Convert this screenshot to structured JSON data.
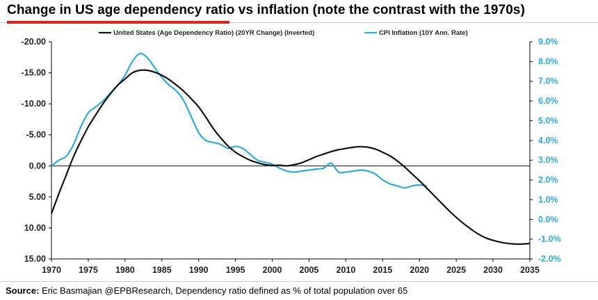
{
  "header": {
    "title": "Change in US age dependency ratio vs inflation (note the contrast with the 1970s)"
  },
  "footer": {
    "source_label": "Source:",
    "source_text": " Eric Basmajian @EPBResearch, Dependency ratio defined as % of total population over 65"
  },
  "colors": {
    "series1": "#111111",
    "series2": "#29abe2",
    "accent": "#e2231a"
  },
  "chart_data": {
    "type": "line",
    "x_ticks": [
      "1970",
      "1975",
      "1980",
      "1985",
      "1990",
      "1995",
      "2000",
      "2005",
      "2010",
      "2015",
      "2020",
      "2025",
      "2030",
      "2035"
    ],
    "xlim": [
      1970,
      2035
    ],
    "y_left": {
      "ylim": [
        -20,
        15
      ],
      "inverted": true,
      "ticks": [
        -20,
        -15,
        -10,
        -5,
        0,
        5,
        10,
        15
      ],
      "tick_labels": [
        "-20.00",
        "-15.00",
        "-10.00",
        "-5.00",
        "0.00",
        "5.00",
        "10.00",
        "15.00"
      ]
    },
    "y_right": {
      "ylim": [
        -2,
        9
      ],
      "ticks": [
        9,
        8,
        7,
        6,
        5,
        4,
        3,
        2,
        1,
        0,
        -1,
        -2
      ],
      "tick_labels": [
        "9.0%",
        "8.0%",
        "7.0%",
        "6.0%",
        "5.0%",
        "4.0%",
        "3.0%",
        "2.0%",
        "1.0%",
        "0.0%",
        "-1.0%",
        "-2.0%"
      ]
    },
    "legend_position": "top",
    "grid": false,
    "series": [
      {
        "name": "United States (Age Dependency Ratio) (20YR Change) (Inverted)",
        "axis": "left",
        "x": [
          1970,
          1971,
          1972,
          1973,
          1974,
          1975,
          1976,
          1977,
          1978,
          1979,
          1980,
          1981,
          1982,
          1983,
          1984,
          1985,
          1986,
          1987,
          1988,
          1989,
          1990,
          1991,
          1992,
          1993,
          1994,
          1995,
          1996,
          1997,
          1998,
          1999,
          2000,
          2001,
          2002,
          2003,
          2004,
          2005,
          2006,
          2007,
          2008,
          2009,
          2010,
          2011,
          2012,
          2013,
          2014,
          2015,
          2016,
          2017,
          2018,
          2019,
          2020,
          2021,
          2022,
          2023,
          2024,
          2025,
          2026,
          2027,
          2028,
          2029,
          2030,
          2031,
          2032,
          2033,
          2034,
          2035
        ],
        "y": [
          7.7,
          4.5,
          1.5,
          -1.5,
          -4.0,
          -6.3,
          -8.2,
          -10.0,
          -11.6,
          -13.0,
          -14.0,
          -15.0,
          -15.4,
          -15.4,
          -15.1,
          -14.6,
          -13.9,
          -13.0,
          -12.0,
          -10.8,
          -9.5,
          -7.8,
          -6.0,
          -4.5,
          -3.2,
          -2.2,
          -1.5,
          -0.9,
          -0.5,
          -0.2,
          -0.05,
          -0.1,
          0.0,
          -0.2,
          -0.5,
          -1.0,
          -1.5,
          -1.9,
          -2.3,
          -2.6,
          -2.8,
          -3.0,
          -3.1,
          -3.0,
          -2.7,
          -2.2,
          -1.6,
          -0.8,
          0.2,
          1.3,
          2.4,
          3.6,
          4.8,
          6.0,
          7.2,
          8.3,
          9.3,
          10.2,
          11.0,
          11.6,
          12.0,
          12.3,
          12.5,
          12.6,
          12.6,
          12.5
        ]
      },
      {
        "name": "CPI Inflation (10Y Ann. Rate)",
        "axis": "right",
        "x": [
          1970,
          1971,
          1972,
          1973,
          1974,
          1975,
          1976,
          1977,
          1978,
          1979,
          1980,
          1981,
          1982,
          1983,
          1984,
          1985,
          1986,
          1987,
          1988,
          1989,
          1990,
          1991,
          1992,
          1993,
          1994,
          1995,
          1996,
          1997,
          1998,
          1999,
          2000,
          2001,
          2002,
          2003,
          2004,
          2005,
          2006,
          2007,
          2008,
          2009,
          2010,
          2011,
          2012,
          2013,
          2014,
          2015,
          2016,
          2017,
          2018,
          2019,
          2020,
          2021
        ],
        "y": [
          2.7,
          3.0,
          3.2,
          3.8,
          4.7,
          5.4,
          5.7,
          6.0,
          6.4,
          6.8,
          7.3,
          8.0,
          8.4,
          8.2,
          7.7,
          7.2,
          6.8,
          6.5,
          6.0,
          5.2,
          4.4,
          4.0,
          3.9,
          3.8,
          3.6,
          3.7,
          3.6,
          3.3,
          3.0,
          2.9,
          2.8,
          2.6,
          2.45,
          2.4,
          2.45,
          2.5,
          2.55,
          2.6,
          2.85,
          2.4,
          2.4,
          2.45,
          2.5,
          2.45,
          2.3,
          2.0,
          1.8,
          1.7,
          1.6,
          1.7,
          1.75,
          1.7
        ]
      }
    ]
  }
}
